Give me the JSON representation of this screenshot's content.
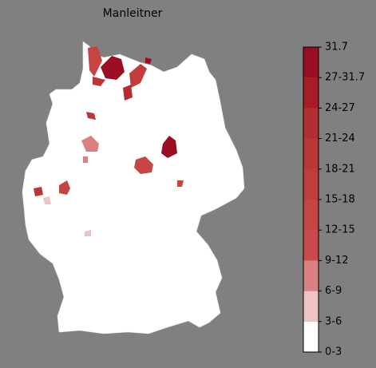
{
  "chart_data": {
    "type": "choropleth",
    "title": "Manleitner",
    "bins": [
      0,
      3,
      6,
      9,
      12,
      15,
      18,
      21,
      24,
      27,
      31.7
    ],
    "colors": [
      "#ffffff",
      "#efc3c3",
      "#db8080",
      "#c94a4a",
      "#c54444",
      "#c13d3d",
      "#bb3636",
      "#b32e30",
      "#a81c2a",
      "#9b0d22"
    ],
    "ticks": [
      {
        "value": 0,
        "label": "0-3"
      },
      {
        "value": 3,
        "label": "3-6"
      },
      {
        "value": 6,
        "label": "6-9"
      },
      {
        "value": 9,
        "label": "9-12"
      },
      {
        "value": 12,
        "label": "12-15"
      },
      {
        "value": 15,
        "label": "15-18"
      },
      {
        "value": 18,
        "label": "18-21"
      },
      {
        "value": 21,
        "label": "21-24"
      },
      {
        "value": 24,
        "label": "24-27"
      },
      {
        "value": 27,
        "label": "27-31.7"
      },
      {
        "value": 31.7,
        "label": "31.7"
      }
    ]
  }
}
